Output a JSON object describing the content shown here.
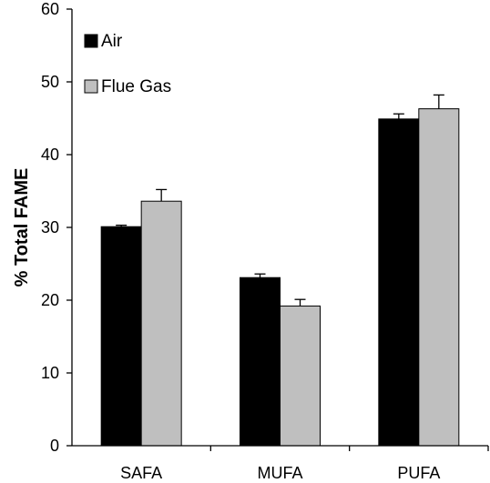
{
  "chart_data": {
    "type": "bar",
    "title": "",
    "xlabel": "",
    "ylabel": "% Total FAME",
    "ylim": [
      0,
      60
    ],
    "yticks": [
      0,
      10,
      20,
      30,
      40,
      50,
      60
    ],
    "grid": false,
    "legend_position": "top-left",
    "categories": [
      "SAFA",
      "MUFA",
      "PUFA"
    ],
    "series": [
      {
        "name": "Air",
        "color": "#000000",
        "values": [
          30.1,
          23.1,
          44.9
        ],
        "errors": [
          0.2,
          0.5,
          0.7
        ]
      },
      {
        "name": "Flue Gas",
        "color": "#bfbfbf",
        "values": [
          33.6,
          19.2,
          46.3
        ],
        "errors": [
          1.6,
          0.9,
          1.9
        ]
      }
    ]
  }
}
